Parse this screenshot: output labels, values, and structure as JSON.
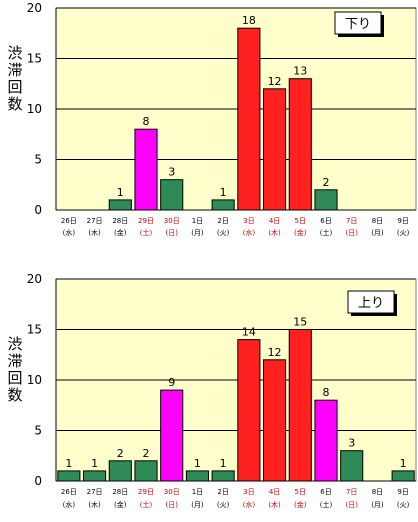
{
  "colors": {
    "plot_bg": "#ffffcc",
    "green": "#2e8b57",
    "red": "#ff2020",
    "magenta": "#ff00ff",
    "grid": "#000000",
    "weekend_text": "#cc0000",
    "weekday_text": "#000000"
  },
  "chart_data": [
    {
      "type": "bar",
      "direction_label": "下り",
      "ylabel": "渋滞回数",
      "ylim": [
        0,
        20
      ],
      "yticks": [
        "0",
        "5",
        "10",
        "15",
        "20"
      ],
      "grid": true,
      "categories": [
        {
          "date": "26日",
          "dow": "(水)",
          "holiday": false
        },
        {
          "date": "27日",
          "dow": "(木)",
          "holiday": false
        },
        {
          "date": "28日",
          "dow": "(金)",
          "holiday": false
        },
        {
          "date": "29日",
          "dow": "(土)",
          "holiday": true
        },
        {
          "date": "30日",
          "dow": "(日)",
          "holiday": true
        },
        {
          "date": "1日",
          "dow": "(月)",
          "holiday": false
        },
        {
          "date": "2日",
          "dow": "(火)",
          "holiday": false
        },
        {
          "date": "3日",
          "dow": "(水)",
          "holiday": true
        },
        {
          "date": "4日",
          "dow": "(木)",
          "holiday": true
        },
        {
          "date": "5日",
          "dow": "(金)",
          "holiday": true
        },
        {
          "date": "6日",
          "dow": "(土)",
          "holiday": false
        },
        {
          "date": "7日",
          "dow": "(日)",
          "holiday": true
        },
        {
          "date": "8日",
          "dow": "(月)",
          "holiday": false
        },
        {
          "date": "9日",
          "dow": "(火)",
          "holiday": false
        }
      ],
      "values": [
        null,
        null,
        1,
        8,
        3,
        null,
        1,
        18,
        12,
        13,
        2,
        null,
        null,
        null
      ],
      "bar_colors": [
        "green",
        "green",
        "green",
        "magenta",
        "green",
        "green",
        "green",
        "red",
        "red",
        "red",
        "green",
        "green",
        "green",
        "green"
      ]
    },
    {
      "type": "bar",
      "direction_label": "上り",
      "ylabel": "渋滞回数",
      "ylim": [
        0,
        20
      ],
      "yticks": [
        "0",
        "5",
        "10",
        "15",
        "20"
      ],
      "grid": true,
      "categories": [
        {
          "date": "26日",
          "dow": "(水)",
          "holiday": false
        },
        {
          "date": "27日",
          "dow": "(木)",
          "holiday": false
        },
        {
          "date": "28日",
          "dow": "(金)",
          "holiday": false
        },
        {
          "date": "29日",
          "dow": "(土)",
          "holiday": true
        },
        {
          "date": "30日",
          "dow": "(日)",
          "holiday": true
        },
        {
          "date": "1日",
          "dow": "(月)",
          "holiday": false
        },
        {
          "date": "2日",
          "dow": "(火)",
          "holiday": false
        },
        {
          "date": "3日",
          "dow": "(水)",
          "holiday": true
        },
        {
          "date": "4日",
          "dow": "(木)",
          "holiday": true
        },
        {
          "date": "5日",
          "dow": "(金)",
          "holiday": true
        },
        {
          "date": "6日",
          "dow": "(土)",
          "holiday": false
        },
        {
          "date": "7日",
          "dow": "(日)",
          "holiday": true
        },
        {
          "date": "8日",
          "dow": "(月)",
          "holiday": false
        },
        {
          "date": "9日",
          "dow": "(火)",
          "holiday": false
        }
      ],
      "values": [
        1,
        1,
        2,
        2,
        9,
        1,
        1,
        14,
        12,
        15,
        8,
        3,
        null,
        1
      ],
      "bar_colors": [
        "green",
        "green",
        "green",
        "green",
        "magenta",
        "green",
        "green",
        "red",
        "red",
        "red",
        "magenta",
        "green",
        "green",
        "green"
      ]
    }
  ]
}
